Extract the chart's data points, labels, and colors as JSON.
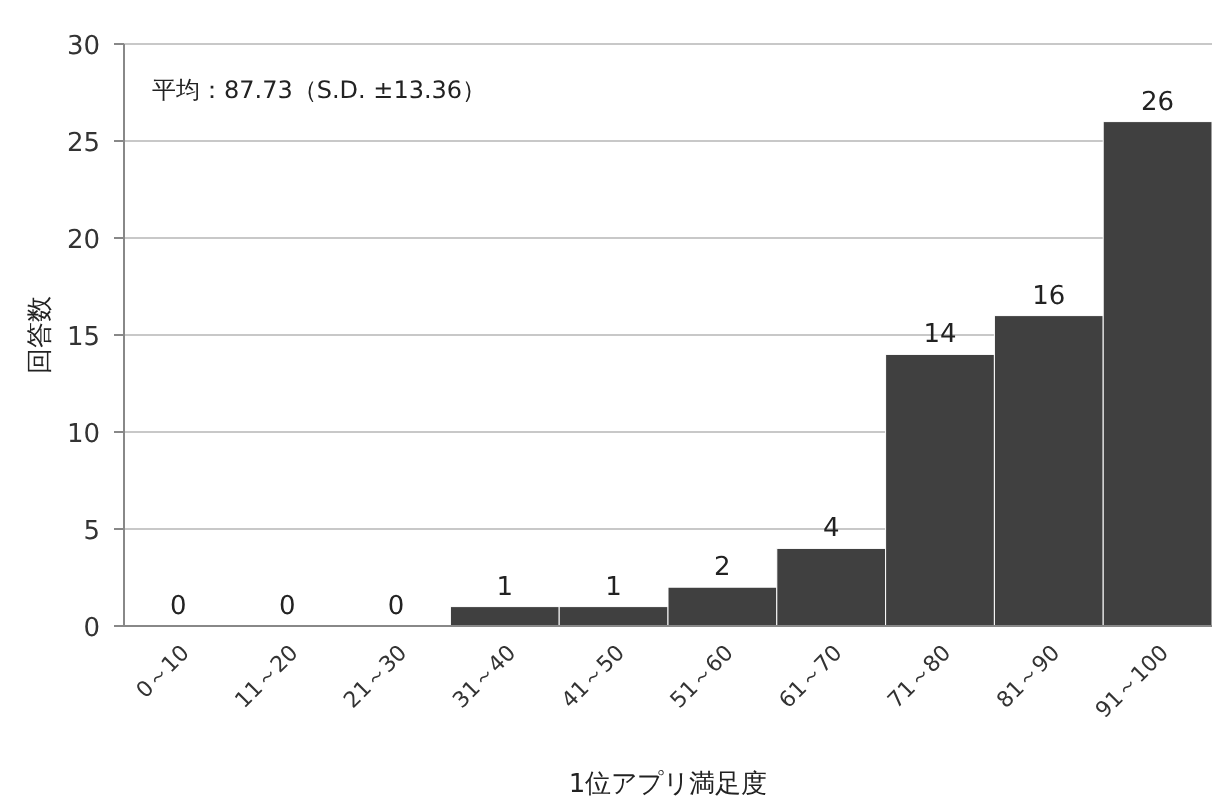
{
  "chart_data": {
    "type": "bar",
    "xlabel": "1位アプリ満足度",
    "ylabel": "回答数",
    "annotations": [
      "平均：87.73（S.D. ±13.36）"
    ],
    "categories": [
      "0～10",
      "11～20",
      "21～30",
      "31～40",
      "41～50",
      "51～60",
      "61～70",
      "71～80",
      "81～90",
      "91～100"
    ],
    "values": [
      0,
      0,
      0,
      1,
      1,
      2,
      4,
      14,
      16,
      26
    ],
    "color": "#404040",
    "ylim": [
      0,
      30
    ],
    "yticks": [
      0,
      5,
      10,
      15,
      20,
      25,
      30
    ],
    "grid": "y",
    "data_labels": true
  }
}
